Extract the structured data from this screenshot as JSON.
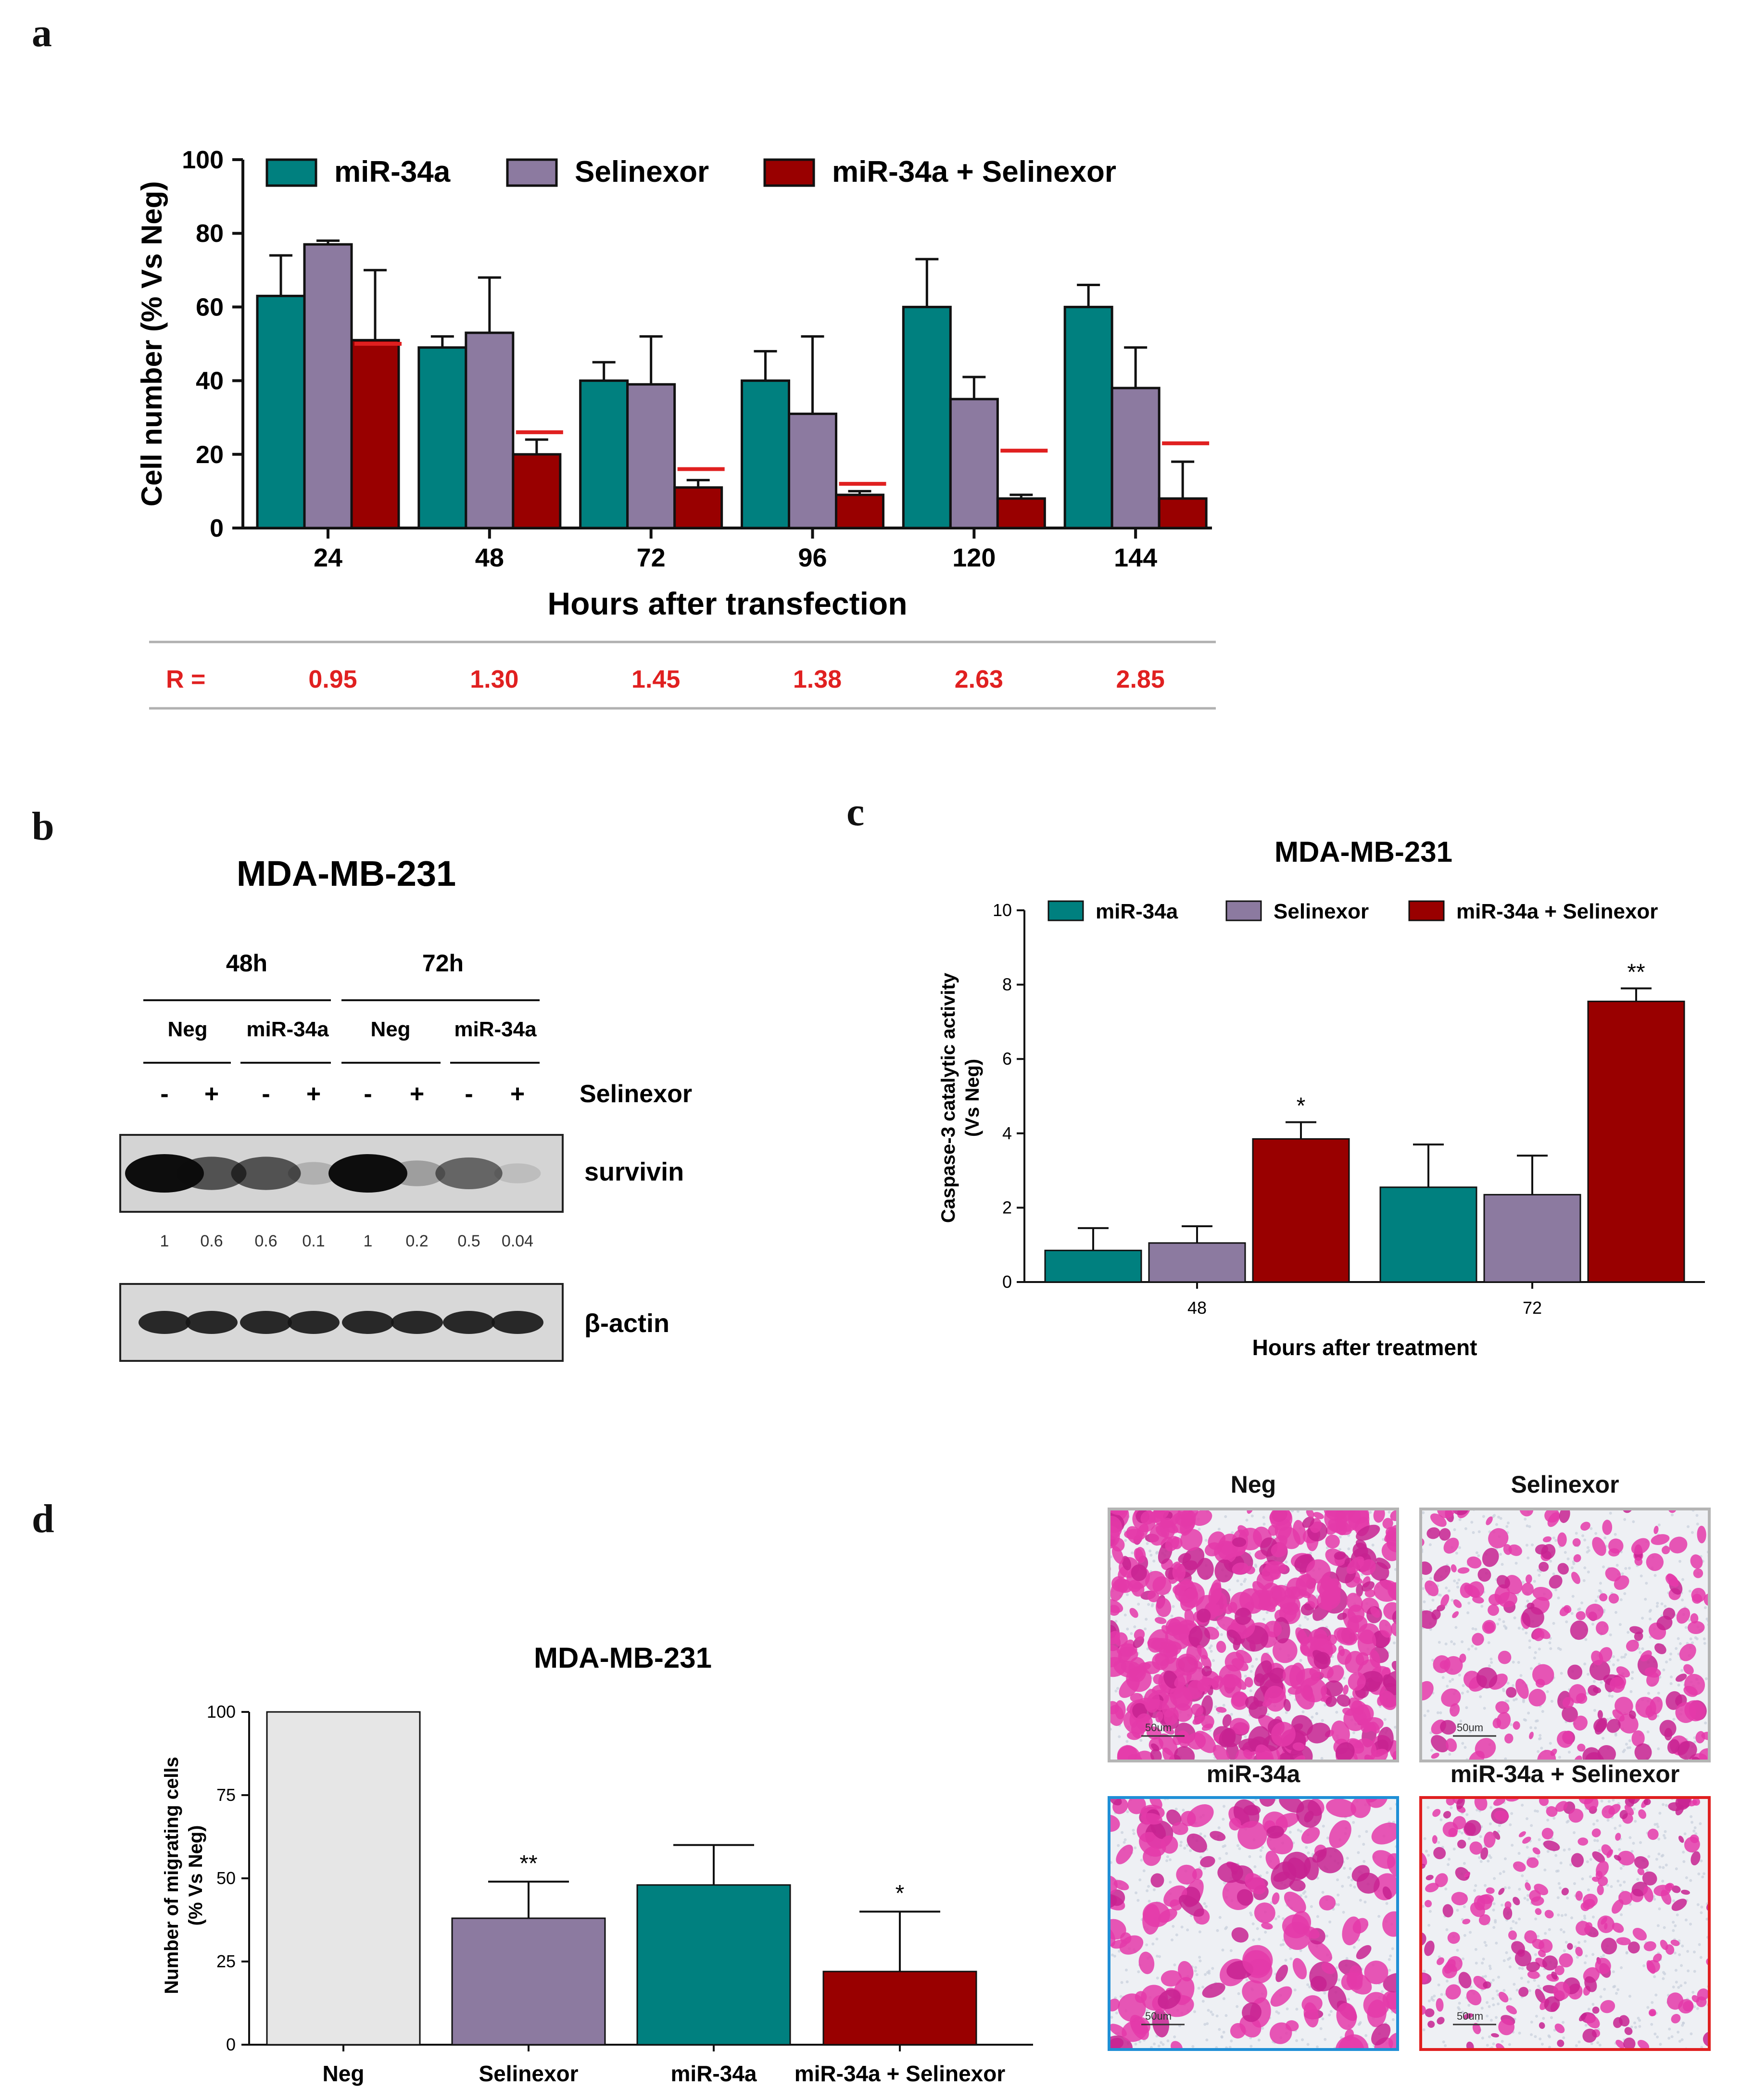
{
  "panels": {
    "a": "a",
    "b": "b",
    "c": "c",
    "d": "d"
  },
  "colors": {
    "teal": "#00807f",
    "purple": "#8c7aa0",
    "darkred": "#990000",
    "light_gray": "#e6e6e6",
    "ratio_red": "#e02020",
    "neg_frame": "#b5b5b5",
    "mir_frame": "#1f8fd6",
    "combo_frame": "#e02020"
  },
  "chart_data": [
    {
      "id": "a",
      "type": "bar",
      "title": "",
      "categories": [
        "24",
        "48",
        "72",
        "96",
        "120",
        "144"
      ],
      "xlabel": "Hours after transfection",
      "ylabel": "Cell number (% Vs Neg)",
      "ylim": [
        0,
        100
      ],
      "yticks": [
        "0",
        "20",
        "40",
        "60",
        "80",
        "100"
      ],
      "legend_position": "top",
      "series": [
        {
          "name": "miR-34a",
          "values": [
            63,
            49,
            40,
            40,
            60,
            60
          ],
          "errors": [
            11,
            3,
            5,
            8,
            13,
            6
          ]
        },
        {
          "name": "Selinexor",
          "values": [
            77,
            53,
            39,
            31,
            35,
            38
          ],
          "errors": [
            1,
            15,
            13,
            21,
            6,
            11
          ]
        },
        {
          "name": "miR-34a + Selinexor",
          "values": [
            51,
            20,
            11,
            9,
            8,
            8
          ],
          "errors": [
            19,
            4,
            2,
            1,
            1,
            10
          ]
        }
      ],
      "expected_values": [
        50,
        26,
        16,
        12,
        21,
        23
      ],
      "ratio_label": "R =",
      "ratios": [
        "0.95",
        "1.30",
        "1.45",
        "1.38",
        "2.63",
        "2.85"
      ]
    },
    {
      "id": "c",
      "type": "bar",
      "title": "MDA-MB-231",
      "categories": [
        "48",
        "72"
      ],
      "xlabel": "Hours after treatment",
      "ylabel": "Caspase-3 catalytic activity (Vs Neg)",
      "ylabel_lines": [
        "Caspase-3 catalytic activity",
        "(Vs Neg)"
      ],
      "ylim": [
        0,
        10
      ],
      "yticks": [
        "0",
        "2",
        "4",
        "6",
        "8",
        "10"
      ],
      "legend_position": "top",
      "series": [
        {
          "name": "miR-34a",
          "values": [
            0.85,
            2.55
          ],
          "errors": [
            0.6,
            1.15
          ]
        },
        {
          "name": "Selinexor",
          "values": [
            1.05,
            2.35
          ],
          "errors": [
            0.45,
            1.05
          ]
        },
        {
          "name": "miR-34a + Selinexor",
          "values": [
            3.85,
            7.55
          ],
          "errors": [
            0.45,
            0.35
          ]
        }
      ],
      "annotations": [
        [
          "",
          "",
          "*"
        ],
        [
          "",
          "",
          "**"
        ]
      ]
    },
    {
      "id": "d",
      "type": "bar",
      "title": "MDA-MB-231",
      "categories": [
        "Neg",
        "Selinexor",
        "miR-34a",
        "miR-34a + Selinexor"
      ],
      "xlabel": "",
      "ylabel": "Number of migrating cells (% Vs Neg)",
      "ylabel_lines": [
        "Number of migrating cells",
        "(% Vs Neg)"
      ],
      "ylim": [
        0,
        100
      ],
      "yticks": [
        "0",
        "25",
        "50",
        "75",
        "100"
      ],
      "values": [
        100,
        38,
        48,
        22
      ],
      "errors": [
        0,
        11,
        12,
        18
      ],
      "annotations": [
        "",
        "**",
        "",
        "*"
      ]
    }
  ],
  "blot": {
    "title": "MDA-MB-231",
    "times": [
      "48h",
      "72h"
    ],
    "conditions": [
      "Neg",
      "miR-34a",
      "Neg",
      "miR-34a"
    ],
    "signs": [
      "-",
      "+",
      "-",
      "+",
      "-",
      "+",
      "-",
      "+"
    ],
    "treatment_label": "Selinexor",
    "survivin_label": "survivin",
    "survivin_intensities": [
      1,
      0.6,
      0.6,
      0.1,
      1,
      0.2,
      0.5,
      0.04
    ],
    "quant_labels": [
      "1",
      "0.6",
      "0.6",
      "0.1",
      "1",
      "0.2",
      "0.5",
      "0.04"
    ],
    "actin_label": "β-actin"
  },
  "micrographs": {
    "neg": {
      "title": "Neg",
      "scale": "50um"
    },
    "selinexor": {
      "title": "Selinexor",
      "scale": "50um"
    },
    "mir34a": {
      "title": "miR-34a",
      "scale": "50um"
    },
    "combo": {
      "title": "miR-34a + Selinexor",
      "scale": "50um"
    }
  }
}
